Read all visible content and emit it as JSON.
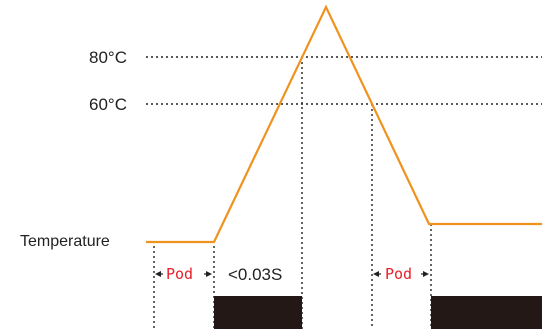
{
  "labels": {
    "level_80": "80°C",
    "level_60": "60°C",
    "baseline": "Temperature",
    "interval_first": "Pod",
    "interval_transition": "<0.03S",
    "interval_second": "Pod"
  },
  "colors": {
    "curve": "#f0921e",
    "interval_text": "#e8202a",
    "block": "#231815",
    "guide": "#222222"
  }
}
